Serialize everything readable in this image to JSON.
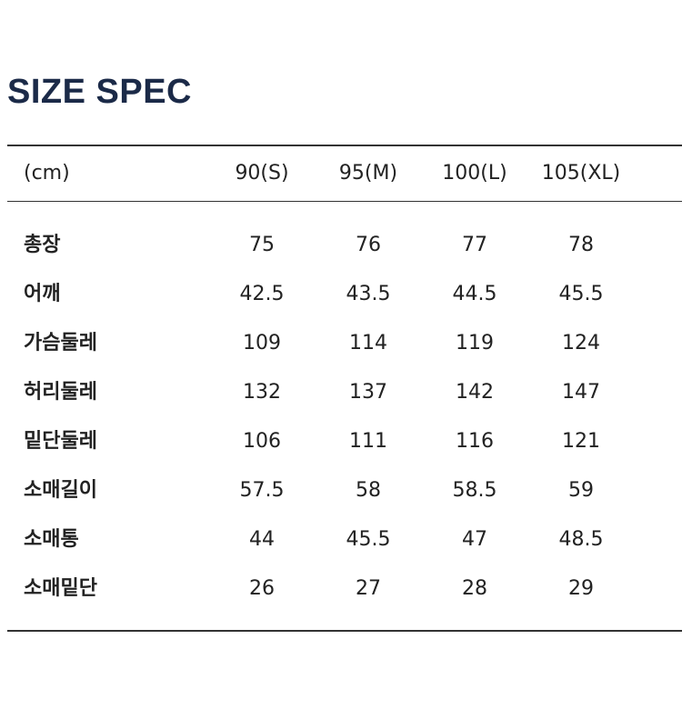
{
  "header": {
    "title": "SIZE SPEC"
  },
  "table": {
    "columns": [
      "(cm)",
      "90(S)",
      "95(M)",
      "100(L)",
      "105(XL)"
    ],
    "rows": [
      [
        "총장",
        "75",
        "76",
        "77",
        "78"
      ],
      [
        "어깨",
        "42.5",
        "43.5",
        "44.5",
        "45.5"
      ],
      [
        "가슴둘레",
        "109",
        "114",
        "119",
        "124"
      ],
      [
        "허리둘레",
        "132",
        "137",
        "142",
        "147"
      ],
      [
        "밑단둘레",
        "106",
        "111",
        "116",
        "121"
      ],
      [
        "소매길이",
        "57.5",
        "58",
        "58.5",
        "59"
      ],
      [
        "소매통",
        "44",
        "45.5",
        "47",
        "48.5"
      ],
      [
        "소매밑단",
        "26",
        "27",
        "28",
        "29"
      ]
    ]
  }
}
